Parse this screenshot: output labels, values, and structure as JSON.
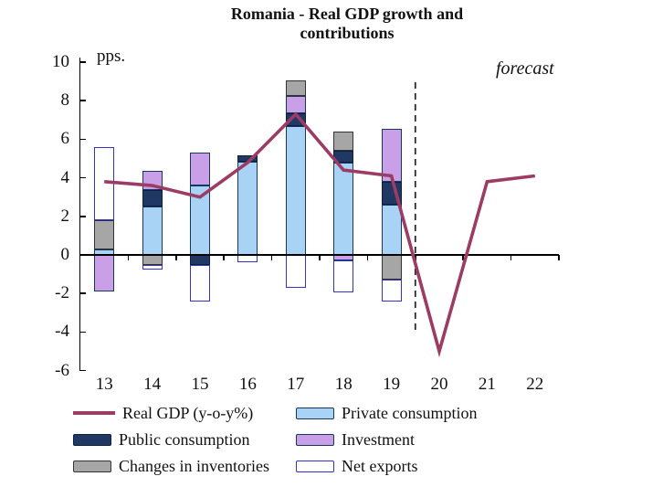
{
  "title": {
    "line1": "Romania - Real GDP growth and",
    "line2": "contributions"
  },
  "labels": {
    "unit": "pps.",
    "forecast": "forecast"
  },
  "colors": {
    "gdp_line": "#9c3c64",
    "private": "#a9d3f5",
    "public": "#1f3864",
    "investment": "#c9a0e8",
    "inventories": "#a6a6a6",
    "net_exports_fill": "#ffffff",
    "net_exports_border": "#3333cc",
    "bar_border": "#17375e",
    "axis": "#000000"
  },
  "chart_data": {
    "type": "bar",
    "subtype": "stacked-bars-with-line",
    "title": "Romania - Real GDP growth and contributions",
    "ylabel": "pps.",
    "ylim": [
      -6,
      10
    ],
    "y_ticks": [
      10,
      8,
      6,
      4,
      2,
      0,
      -2,
      -4,
      -6
    ],
    "grid": false,
    "legend_position": "bottom",
    "categories": [
      "13",
      "14",
      "15",
      "16",
      "17",
      "18",
      "19",
      "20",
      "21",
      "22"
    ],
    "forecast_boundary_after_index": 6,
    "line_series": {
      "name": "Real GDP (y-o-y%)",
      "values": [
        3.8,
        3.6,
        3.0,
        4.8,
        7.3,
        4.4,
        4.1,
        -5.0,
        3.8,
        4.1
      ]
    },
    "series": [
      {
        "key": "private",
        "name": "Private consumption",
        "values": [
          0.3,
          2.5,
          3.6,
          4.85,
          6.7,
          4.8,
          2.6,
          null,
          null,
          null
        ]
      },
      {
        "key": "public",
        "name": "Public consumption",
        "values": [
          0,
          0.85,
          -0.5,
          0.3,
          0.65,
          0.6,
          1.2,
          null,
          null,
          null
        ]
      },
      {
        "key": "investment",
        "name": "Investment",
        "values": [
          -1.9,
          1.0,
          1.7,
          0,
          0.9,
          -0.3,
          2.75,
          null,
          null,
          null
        ]
      },
      {
        "key": "inventories",
        "name": "Changes in inventories",
        "values": [
          1.5,
          -0.5,
          0,
          0,
          0.8,
          1.0,
          -1.3,
          null,
          null,
          null
        ]
      },
      {
        "key": "net_exports",
        "name": "Net exports",
        "values": [
          3.8,
          -0.25,
          -1.9,
          -0.4,
          -1.7,
          -1.65,
          -1.1,
          null,
          null,
          null
        ]
      }
    ]
  },
  "legend": {
    "items": [
      {
        "label": "Real GDP (y-o-y%)",
        "swatch": "line",
        "key": "gdp"
      },
      {
        "label": "Private consumption",
        "swatch": "box",
        "key": "private"
      },
      {
        "label": "Public consumption",
        "swatch": "box",
        "key": "public"
      },
      {
        "label": "Investment",
        "swatch": "box",
        "key": "investment"
      },
      {
        "label": "Changes in inventories",
        "swatch": "box",
        "key": "inventories"
      },
      {
        "label": "Net exports",
        "swatch": "box",
        "key": "net_exports"
      }
    ]
  }
}
